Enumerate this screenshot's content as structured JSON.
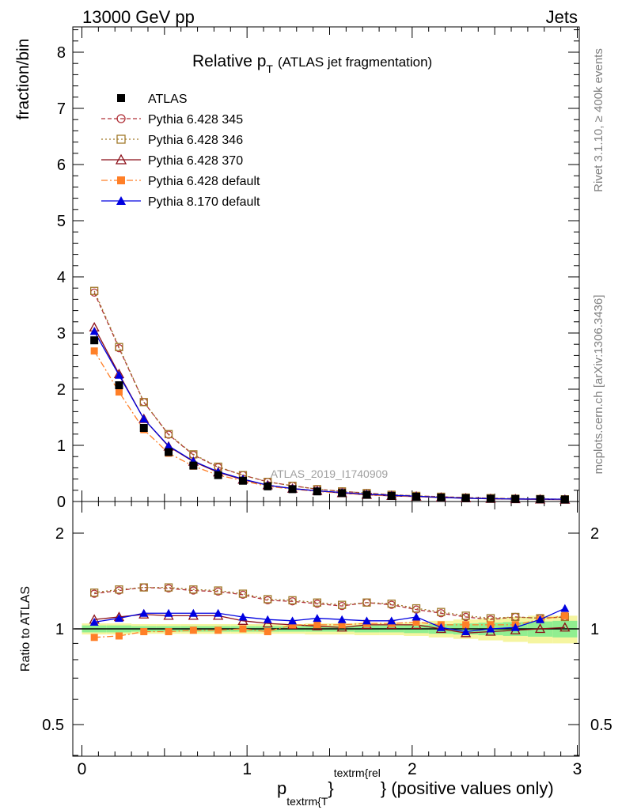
{
  "header": {
    "left": "13000 GeV pp",
    "right": "Jets"
  },
  "title": {
    "main": "Relative p",
    "sub": "T",
    "tail": "(ATLAS jet fragmentation)"
  },
  "side": {
    "rivet": "Rivet 3.1.10, ≥ 400k events",
    "mcplots": "mcplots.cern.ch [arXiv:1306.3436]"
  },
  "watermark": "ATLAS_2019_I1740909",
  "ylabel_top": "fraction/bin",
  "ylabel_bottom": "Ratio to ATLAS",
  "xlabel": {
    "p": "p",
    "sub": "textrm{T",
    "close1": "}",
    "sup": "textrm{rel",
    "tail": "} (positive values only)"
  },
  "legend": [
    {
      "name": "ATLAS",
      "color": "#000000",
      "marker": "square-filled",
      "dash": "none"
    },
    {
      "name": "Pythia 6.428 345",
      "color": "#b03038",
      "marker": "circle-open",
      "dash": "5,3"
    },
    {
      "name": "Pythia 6.428 346",
      "color": "#a07828",
      "marker": "square-open",
      "dash": "2,3"
    },
    {
      "name": "Pythia 6.428 370",
      "color": "#8b0f18",
      "marker": "triangle-open",
      "dash": "none"
    },
    {
      "name": "Pythia 6.428 default",
      "color": "#ff7f27",
      "marker": "square-filled",
      "dash": "8,3,2,3"
    },
    {
      "name": "Pythia 8.170 default",
      "color": "#0000e0",
      "marker": "triangle-filled",
      "dash": "none"
    }
  ],
  "chart_data": [
    {
      "type": "scatter",
      "title": "Relative pT (ATLAS jet fragmentation)",
      "ylabel": "fraction/bin",
      "xlim": [
        0,
        3
      ],
      "ylim": [
        0,
        8.5
      ],
      "yticks": [
        0,
        1,
        2,
        3,
        4,
        5,
        6,
        7,
        8
      ],
      "x": [
        0.075,
        0.225,
        0.375,
        0.525,
        0.675,
        0.825,
        0.975,
        1.125,
        1.275,
        1.425,
        1.575,
        1.725,
        1.875,
        2.025,
        2.175,
        2.325,
        2.475,
        2.625,
        2.775,
        2.925
      ],
      "series": [
        {
          "name": "ATLAS",
          "values": [
            2.87,
            2.07,
            1.31,
            0.88,
            0.64,
            0.47,
            0.37,
            0.27,
            0.22,
            0.18,
            0.15,
            0.12,
            0.1,
            0.085,
            0.07,
            0.06,
            0.05,
            0.045,
            0.04,
            0.035
          ]
        },
        {
          "name": "Pythia 6.428 345",
          "values": [
            3.72,
            2.73,
            1.77,
            1.19,
            0.83,
            0.61,
            0.47,
            0.35,
            0.28,
            0.22,
            0.18,
            0.15,
            0.12,
            0.1,
            0.085,
            0.07,
            0.06,
            0.05,
            0.045,
            0.04
          ]
        },
        {
          "name": "Pythia 6.428 346",
          "values": [
            3.75,
            2.75,
            1.77,
            1.2,
            0.84,
            0.62,
            0.47,
            0.35,
            0.28,
            0.22,
            0.18,
            0.15,
            0.12,
            0.1,
            0.085,
            0.07,
            0.06,
            0.05,
            0.045,
            0.04
          ]
        },
        {
          "name": "Pythia 6.428 370",
          "values": [
            3.1,
            2.27,
            1.47,
            0.98,
            0.71,
            0.52,
            0.39,
            0.29,
            0.23,
            0.19,
            0.15,
            0.12,
            0.1,
            0.088,
            0.07,
            0.058,
            0.048,
            0.042,
            0.037,
            0.033
          ]
        },
        {
          "name": "Pythia 6.428 default",
          "values": [
            2.68,
            1.95,
            1.28,
            0.86,
            0.63,
            0.47,
            0.37,
            0.27,
            0.22,
            0.18,
            0.15,
            0.12,
            0.1,
            0.087,
            0.071,
            0.06,
            0.05,
            0.045,
            0.04,
            0.036
          ]
        },
        {
          "name": "Pythia 8.170 default",
          "values": [
            3.03,
            2.25,
            1.47,
            0.99,
            0.72,
            0.53,
            0.4,
            0.29,
            0.23,
            0.19,
            0.16,
            0.13,
            0.11,
            0.095,
            0.072,
            0.059,
            0.05,
            0.045,
            0.043,
            0.04
          ]
        }
      ]
    },
    {
      "type": "scatter",
      "ylabel": "Ratio to ATLAS",
      "xlabel": "p textrm{T} textrm{rel} (positive values only)",
      "xlim": [
        0,
        3
      ],
      "ylim": [
        0.35,
        2.3
      ],
      "yscale": "log",
      "yticks": [
        0.5,
        1,
        2
      ],
      "xticks": [
        0,
        1,
        2,
        3
      ],
      "x": [
        0.075,
        0.225,
        0.375,
        0.525,
        0.675,
        0.825,
        0.975,
        1.125,
        1.275,
        1.425,
        1.575,
        1.725,
        1.875,
        2.025,
        2.175,
        2.325,
        2.475,
        2.625,
        2.775,
        2.925
      ],
      "band_inner": [
        0.025,
        0.025,
        0.02,
        0.02,
        0.02,
        0.02,
        0.02,
        0.02,
        0.02,
        0.02,
        0.02,
        0.025,
        0.025,
        0.03,
        0.035,
        0.04,
        0.045,
        0.05,
        0.055,
        0.06
      ],
      "band_outer": [
        0.04,
        0.04,
        0.035,
        0.035,
        0.035,
        0.035,
        0.035,
        0.035,
        0.035,
        0.04,
        0.04,
        0.045,
        0.045,
        0.05,
        0.06,
        0.07,
        0.08,
        0.09,
        0.1,
        0.1
      ],
      "series": [
        {
          "name": "Pythia 6.428 345",
          "values": [
            1.29,
            1.32,
            1.35,
            1.34,
            1.32,
            1.31,
            1.28,
            1.23,
            1.22,
            1.2,
            1.18,
            1.21,
            1.19,
            1.15,
            1.12,
            1.09,
            1.07,
            1.09,
            1.08,
            1.09
          ]
        },
        {
          "name": "Pythia 6.428 346",
          "values": [
            1.3,
            1.33,
            1.35,
            1.35,
            1.33,
            1.32,
            1.29,
            1.24,
            1.23,
            1.21,
            1.19,
            1.21,
            1.2,
            1.16,
            1.13,
            1.1,
            1.08,
            1.09,
            1.08,
            1.09
          ]
        },
        {
          "name": "Pythia 6.428 370",
          "values": [
            1.07,
            1.09,
            1.11,
            1.1,
            1.1,
            1.1,
            1.06,
            1.04,
            1.03,
            1.02,
            1.01,
            1.03,
            1.03,
            1.03,
            1.0,
            0.97,
            0.98,
            0.99,
            1.0,
            1.01
          ]
        },
        {
          "name": "Pythia 6.428 default",
          "values": [
            0.94,
            0.95,
            0.98,
            0.98,
            0.99,
            0.99,
            1.0,
            0.98,
            1.03,
            1.03,
            1.03,
            1.04,
            1.04,
            1.05,
            1.03,
            1.03,
            1.03,
            1.03,
            1.07,
            1.1
          ]
        },
        {
          "name": "Pythia 8.170 default",
          "values": [
            1.05,
            1.08,
            1.12,
            1.12,
            1.12,
            1.12,
            1.09,
            1.07,
            1.06,
            1.08,
            1.07,
            1.06,
            1.06,
            1.09,
            1.01,
            0.98,
            1.0,
            1.01,
            1.07,
            1.16
          ]
        }
      ]
    }
  ]
}
